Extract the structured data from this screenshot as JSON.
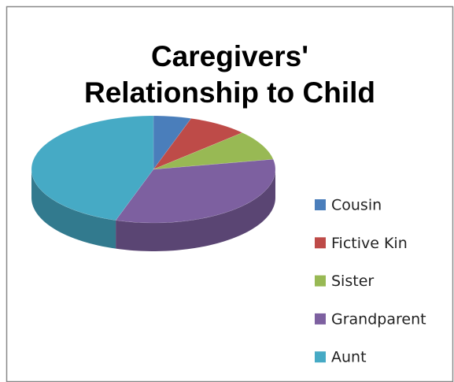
{
  "chart_data": {
    "type": "pie",
    "title": "Caregivers' Relationship to Child",
    "categories": [
      "Cousin",
      "Fictive Kin",
      "Sister",
      "Grandparent",
      "Aunt"
    ],
    "values": [
      5,
      8,
      9,
      33,
      45
    ],
    "colors": [
      "#4a7ebb",
      "#be4b48",
      "#98b954",
      "#7d60a0",
      "#46aac5"
    ],
    "legend": "right"
  }
}
